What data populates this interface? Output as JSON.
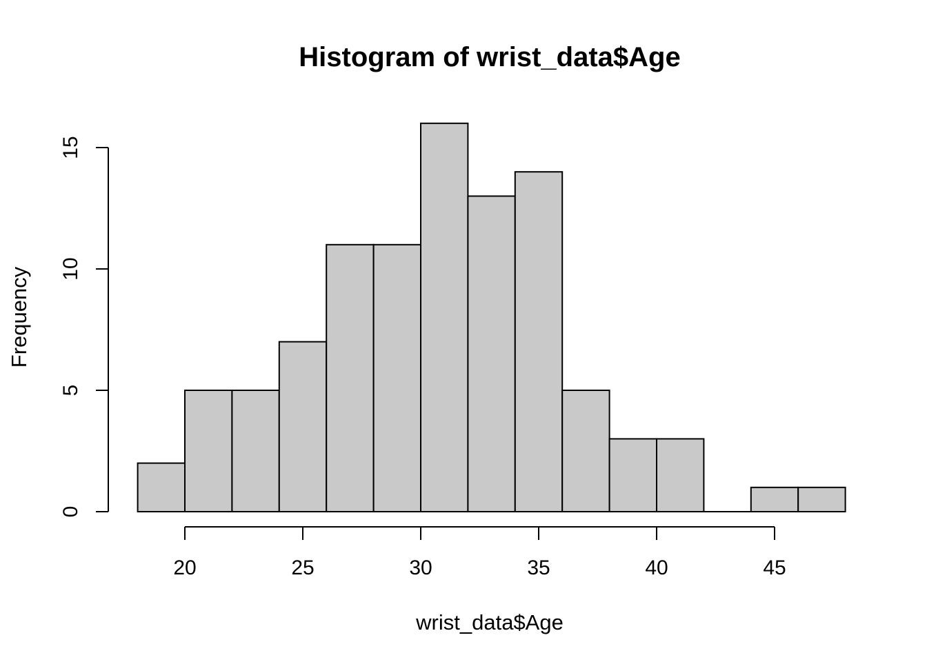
{
  "chart_data": {
    "type": "bar",
    "subtype": "histogram",
    "title": "Histogram of wrist_data$Age",
    "xlabel": "wrist_data$Age",
    "ylabel": "Frequency",
    "bin_edges": [
      18,
      20,
      22,
      24,
      26,
      28,
      30,
      32,
      34,
      36,
      38,
      40,
      42,
      44,
      46,
      48
    ],
    "counts": [
      2,
      5,
      5,
      7,
      11,
      11,
      16,
      13,
      14,
      5,
      3,
      3,
      0,
      1,
      1
    ],
    "x_ticks": [
      20,
      25,
      30,
      35,
      40,
      45
    ],
    "y_ticks": [
      0,
      5,
      10,
      15
    ],
    "xlim": [
      18,
      48
    ],
    "ylim": [
      0,
      16
    ],
    "grid": false,
    "legend": "none",
    "colors": {
      "bar_fill": "#c9c9c9",
      "bar_stroke": "#000000",
      "axis": "#000000",
      "text": "#000000",
      "background": "#ffffff"
    }
  }
}
